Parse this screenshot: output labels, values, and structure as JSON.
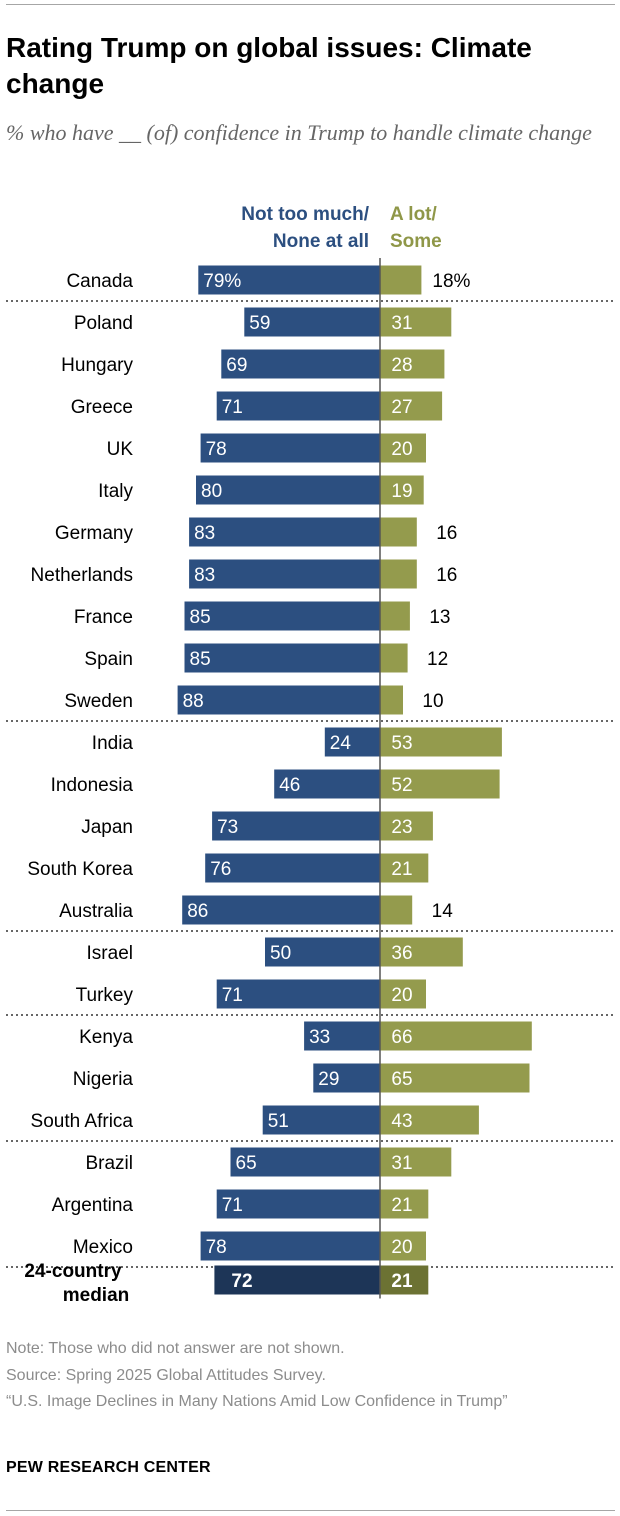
{
  "title": "Rating Trump on global issues: Climate change",
  "subtitle": "% who have __ (of) confidence in Trump to handle climate change",
  "legend": {
    "negative": [
      "Not too much/",
      "None at all"
    ],
    "positive": [
      "A lot/",
      "Some"
    ]
  },
  "colors": {
    "negative": "#2c4f80",
    "positive": "#949b4d",
    "median_negative": "#1d3557",
    "median_positive": "#6c7233",
    "label_negative": "#2c4f80",
    "label_positive": "#8f9748"
  },
  "chart_data": {
    "type": "bar",
    "orientation": "horizontal-diverging",
    "title": "Rating Trump on global issues: Climate change",
    "categories": [
      "Canada",
      "Poland",
      "Hungary",
      "Greece",
      "UK",
      "Italy",
      "Germany",
      "Netherlands",
      "France",
      "Spain",
      "Sweden",
      "India",
      "Indonesia",
      "Japan",
      "South Korea",
      "Australia",
      "Israel",
      "Turkey",
      "Kenya",
      "Nigeria",
      "South Africa",
      "Brazil",
      "Argentina",
      "Mexico"
    ],
    "series": [
      {
        "name": "Not too much/None at all",
        "values": [
          79,
          59,
          69,
          71,
          78,
          80,
          83,
          83,
          85,
          85,
          88,
          24,
          46,
          73,
          76,
          86,
          50,
          71,
          33,
          29,
          51,
          65,
          71,
          78
        ]
      },
      {
        "name": "A lot/Some",
        "values": [
          18,
          31,
          28,
          27,
          20,
          19,
          16,
          16,
          13,
          12,
          10,
          53,
          52,
          23,
          21,
          14,
          36,
          20,
          66,
          65,
          43,
          31,
          21,
          20
        ]
      }
    ],
    "first_row_suffix": "%",
    "group_ends": [
      0,
      10,
      15,
      17,
      20,
      23
    ],
    "median": {
      "label": [
        "24-country",
        "median"
      ],
      "negative": 72,
      "positive": 21
    }
  },
  "footer": {
    "note": "Note: Those who did not answer are not shown.",
    "source": "Source: Spring 2025 Global Attitudes Survey.",
    "report": "“U.S. Image Declines in Many Nations Amid Low Confidence in Trump”",
    "brand": "PEW RESEARCH CENTER"
  }
}
